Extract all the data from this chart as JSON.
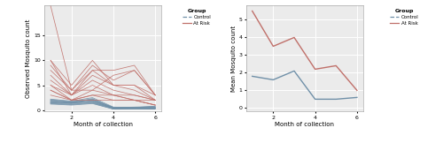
{
  "months": [
    1,
    2,
    3,
    4,
    5,
    6
  ],
  "control_individual": [
    [
      1.8,
      1.6,
      2.1,
      0.5,
      0.5,
      0.6
    ],
    [
      1.5,
      1.4,
      1.8,
      0.4,
      0.4,
      0.5
    ],
    [
      2.0,
      1.5,
      2.2,
      0.5,
      0.6,
      0.7
    ],
    [
      1.7,
      1.3,
      1.9,
      0.3,
      0.3,
      0.4
    ],
    [
      2.2,
      1.8,
      2.5,
      0.6,
      0.5,
      0.8
    ],
    [
      1.4,
      1.2,
      1.5,
      0.3,
      0.4,
      0.3
    ],
    [
      1.9,
      1.7,
      2.0,
      0.5,
      0.5,
      0.6
    ],
    [
      1.6,
      1.5,
      1.7,
      0.4,
      0.4,
      0.4
    ],
    [
      2.1,
      1.6,
      2.3,
      0.4,
      0.5,
      0.5
    ],
    [
      1.5,
      1.4,
      1.6,
      0.3,
      0.3,
      0.3
    ],
    [
      1.3,
      1.1,
      1.4,
      0.2,
      0.3,
      0.2
    ],
    [
      1.2,
      1.0,
      1.3,
      0.2,
      0.2,
      0.2
    ]
  ],
  "atrisk_individual": [
    [
      21,
      4,
      4,
      7,
      8,
      3
    ],
    [
      10,
      3,
      8,
      8,
      9,
      3
    ],
    [
      10,
      5,
      10,
      5,
      5,
      3
    ],
    [
      9,
      4,
      9,
      6,
      8,
      3
    ],
    [
      8,
      4,
      8,
      5,
      5,
      2
    ],
    [
      7,
      3,
      7,
      5,
      4,
      2
    ],
    [
      6,
      3,
      6,
      4,
      3,
      2
    ],
    [
      5,
      3,
      5,
      3,
      3,
      2
    ],
    [
      5,
      2,
      4,
      3,
      2,
      2
    ],
    [
      4,
      2,
      3,
      3,
      2,
      1
    ],
    [
      4,
      2,
      3,
      2,
      2,
      1
    ],
    [
      3,
      2,
      2,
      2,
      2,
      1
    ]
  ],
  "control_mean": [
    1.8,
    1.6,
    2.1,
    0.5,
    0.5,
    0.6
  ],
  "atrisk_mean": [
    5.5,
    3.5,
    4.0,
    2.2,
    2.4,
    1.0
  ],
  "control_color": "#7090A8",
  "atrisk_color": "#C0706A",
  "bg_color": "#EBEBEB",
  "grid_color": "white",
  "ylabel_left": "Observed Mosquito count",
  "ylabel_right": "Mean Mosquito count",
  "xlabel": "Month of collection",
  "legend_title": "Group",
  "legend_control": "Control",
  "legend_atrisk": "At Risk",
  "xlim_left": [
    0.7,
    6.3
  ],
  "xlim_right": [
    0.7,
    6.3
  ],
  "ylim_left": [
    -0.3,
    21
  ],
  "ylim_right": [
    -0.2,
    5.8
  ],
  "xticks": [
    2,
    4,
    6
  ],
  "yticks_left": [
    0,
    5,
    10,
    15
  ],
  "yticks_right": [
    0,
    1,
    2,
    3,
    4,
    5
  ]
}
